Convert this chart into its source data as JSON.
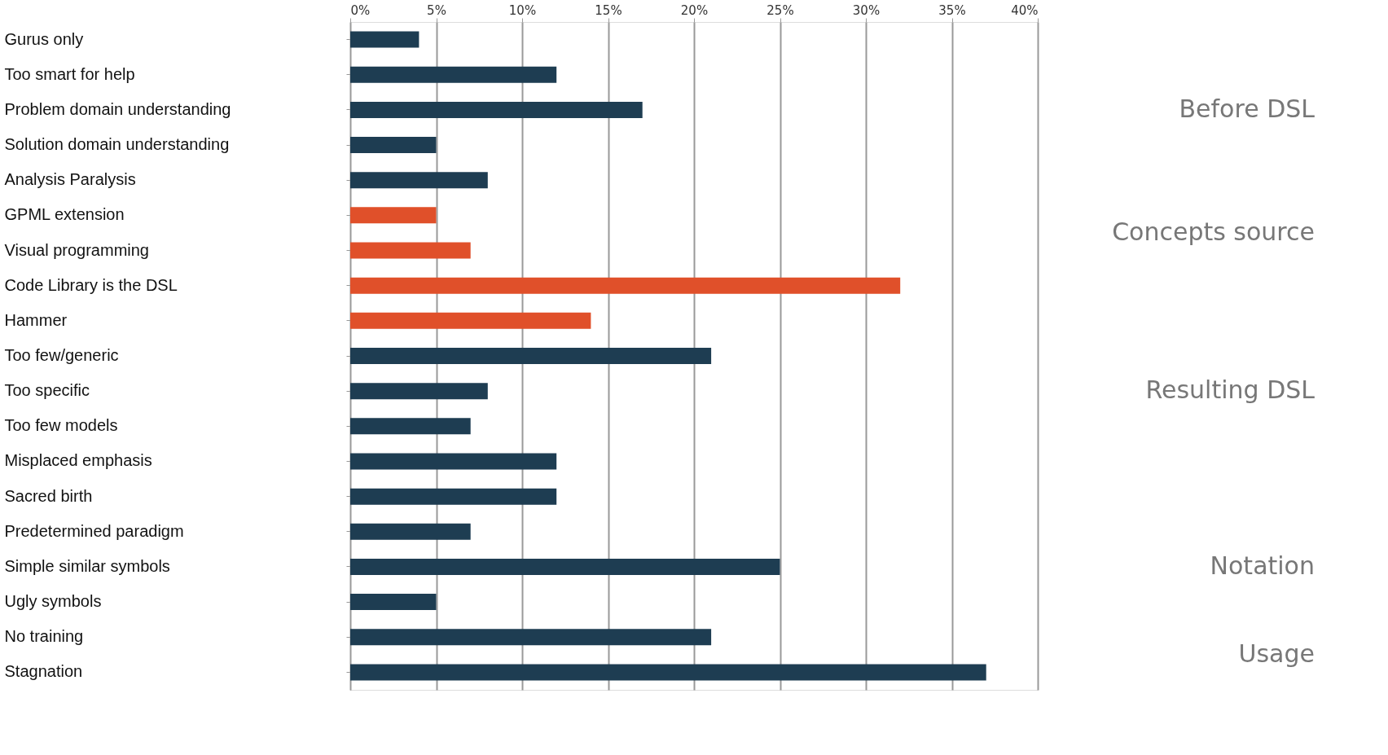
{
  "chart_data": {
    "type": "bar",
    "orientation": "horizontal",
    "categories": [
      "Gurus only",
      "Too smart for help",
      "Problem domain understanding",
      "Solution domain understanding",
      "Analysis Paralysis",
      "GPML extension",
      "Visual programming",
      "Code Library is the DSL",
      "Hammer",
      "Too few/generic",
      "Too specific",
      "Too few models",
      "Misplaced emphasis",
      "Sacred birth",
      "Predetermined paradigm",
      "Simple similar symbols",
      "Ugly symbols",
      "No training",
      "Stagnation"
    ],
    "values": [
      4,
      12,
      17,
      5,
      8,
      5,
      7,
      32,
      14,
      21,
      8,
      7,
      12,
      12,
      7,
      25,
      5,
      21,
      37
    ],
    "colors": [
      "#1e3d52",
      "#1e3d52",
      "#1e3d52",
      "#1e3d52",
      "#1e3d52",
      "#e0502a",
      "#e0502a",
      "#e0502a",
      "#e0502a",
      "#1e3d52",
      "#1e3d52",
      "#1e3d52",
      "#1e3d52",
      "#1e3d52",
      "#1e3d52",
      "#1e3d52",
      "#1e3d52",
      "#1e3d52",
      "#1e3d52"
    ],
    "xlim": [
      0,
      40
    ],
    "xticks": [
      {
        "value": 0,
        "label": "0%"
      },
      {
        "value": 5,
        "label": "5%"
      },
      {
        "value": 10,
        "label": "10%"
      },
      {
        "value": 15,
        "label": "15%"
      },
      {
        "value": 20,
        "label": "20%"
      },
      {
        "value": 25,
        "label": "25%"
      },
      {
        "value": 30,
        "label": "30%"
      },
      {
        "value": 35,
        "label": "35%"
      },
      {
        "value": 40,
        "label": "40%"
      }
    ],
    "grid": "x",
    "annotations": [
      "Before DSL",
      "Concepts source",
      "Resulting DSL",
      "Notation",
      "Usage"
    ]
  }
}
